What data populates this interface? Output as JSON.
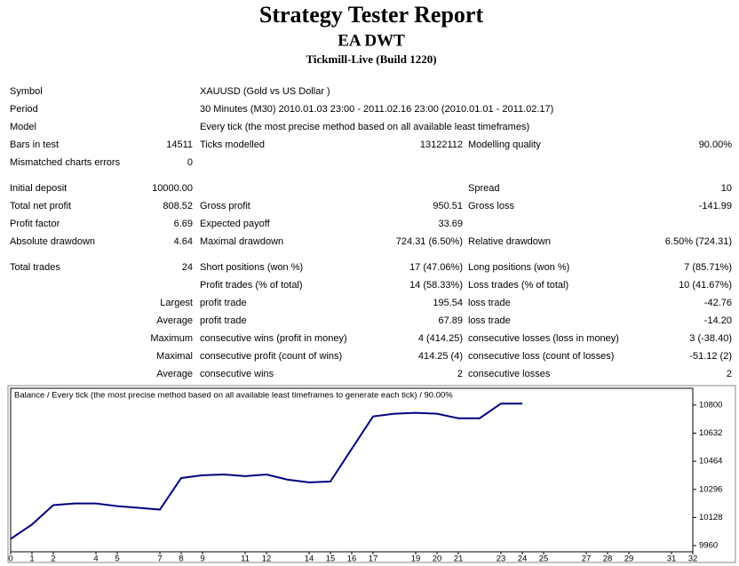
{
  "header": {
    "title": "Strategy Tester Report",
    "expert": "EA DWT",
    "server": "Tickmill-Live (Build 1220)"
  },
  "table": {
    "groups": [
      {
        "rows": [
          [
            "Symbol",
            null,
            "XAUUSD (Gold vs US Dollar )",
            null,
            null,
            null
          ],
          [
            "Period",
            null,
            "30 Minutes (M30) 2010.01.03 23:00 - 2011.02.16 23:00 (2010.01.01 - 2011.02.17)",
            null,
            null,
            null
          ],
          [
            "Model",
            null,
            "Every tick (the most precise method based on all available least timeframes)",
            null,
            null,
            null
          ],
          [
            "Bars in test",
            "14511",
            "Ticks modelled",
            "13122112",
            "Modelling quality",
            "90.00%"
          ],
          [
            "Mismatched charts errors",
            "0",
            null,
            null,
            null,
            null
          ]
        ]
      },
      {
        "rows": [
          [
            "Initial deposit",
            "10000.00",
            null,
            null,
            "Spread",
            "10"
          ],
          [
            "Total net profit",
            "808.52",
            "Gross profit",
            "950.51",
            "Gross loss",
            "-141.99"
          ],
          [
            "Profit factor",
            "6.69",
            "Expected payoff",
            "33.69",
            null,
            null
          ],
          [
            "Absolute drawdown",
            "4.64",
            "Maximal drawdown",
            "724.31 (6.50%)",
            "Relative drawdown",
            "6.50% (724.31)"
          ]
        ]
      },
      {
        "rows": [
          [
            "Total trades",
            "24",
            "Short positions (won %)",
            "17 (47.06%)",
            "Long positions (won %)",
            "7 (85.71%)"
          ],
          [
            null,
            null,
            "Profit trades (% of total)",
            "14 (58.33%)",
            "Loss trades (% of total)",
            "10 (41.67%)"
          ],
          [
            null,
            "Largest",
            "profit trade",
            "195.54",
            "loss trade",
            "-42.76"
          ],
          [
            null,
            "Average",
            "profit trade",
            "67.89",
            "loss trade",
            "-14.20"
          ],
          [
            null,
            "Maximum",
            "consecutive wins (profit in money)",
            "4 (414.25)",
            "consecutive losses (loss in money)",
            "3 (-38.40)"
          ],
          [
            null,
            "Maximal",
            "consecutive profit (count of wins)",
            "414.25 (4)",
            "consecutive loss (count of losses)",
            "-51.12 (2)"
          ],
          [
            null,
            "Average",
            "consecutive wins",
            "2",
            "consecutive losses",
            "2"
          ]
        ]
      }
    ]
  },
  "chart_data": {
    "type": "line",
    "title": "Balance / Every tick (the most precise method based on all available least timeframes to generate each tick) / 90.00%",
    "x": [
      0,
      1,
      2,
      3,
      4,
      5,
      6,
      7,
      8,
      9,
      10,
      11,
      12,
      13,
      14,
      15,
      16,
      17,
      18,
      19,
      20,
      21,
      22,
      23,
      24
    ],
    "series": [
      {
        "color": "#000080",
        "values": [
          10000,
          10086,
          10202,
          10212,
          10212,
          10196,
          10186,
          10175,
          10364,
          10380,
          10385,
          10375,
          10385,
          10354,
          10338,
          10343,
          10538,
          10732,
          10748,
          10753,
          10748,
          10721,
          10721,
          10808.52,
          10808.52
        ]
      }
    ],
    "xlim": [
      0,
      32
    ],
    "ylim": [
      9923,
      10900
    ],
    "xticks": [
      0,
      1,
      2,
      4,
      5,
      7,
      8,
      9,
      11,
      12,
      14,
      15,
      16,
      17,
      19,
      20,
      21,
      23,
      24,
      25,
      27,
      28,
      29,
      31,
      32
    ],
    "yticks": [
      9960,
      10128,
      10296,
      10464,
      10632,
      10800
    ]
  }
}
